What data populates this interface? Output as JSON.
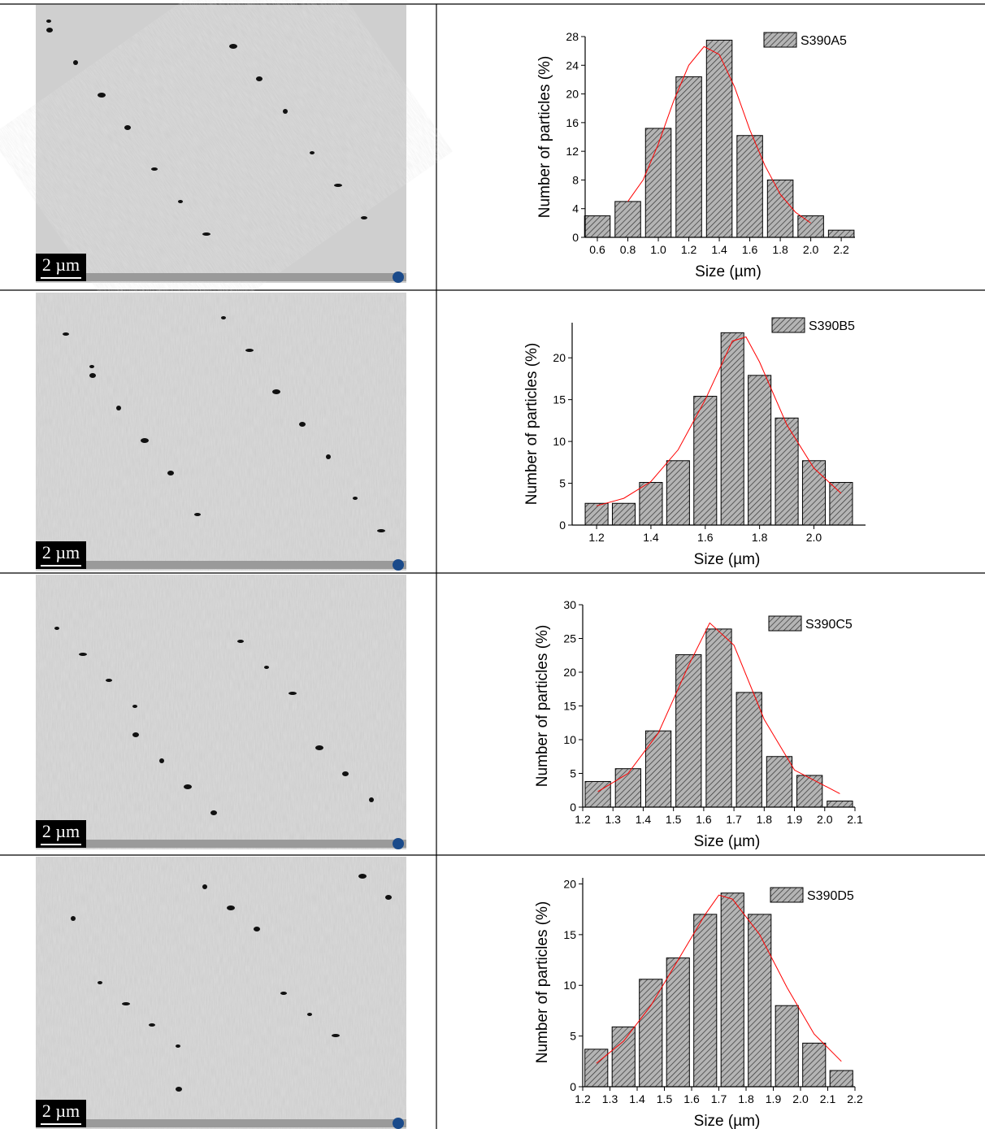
{
  "images": [
    {
      "scale_label": "2 µm"
    },
    {
      "scale_label": "2 µm"
    },
    {
      "scale_label": "2 µm"
    },
    {
      "scale_label": "2 µm"
    }
  ],
  "chart_data": [
    {
      "type": "histogram",
      "series_name": "S390A5",
      "color": "#a0a0a0",
      "x_label": "Size (µm)",
      "y_label": "Number of particles (%)",
      "x": [
        0.6,
        0.8,
        1.0,
        1.2,
        1.4,
        1.6,
        1.8,
        2.0,
        2.2
      ],
      "values": [
        3,
        5,
        15.2,
        22.4,
        27.5,
        14.2,
        8,
        3,
        1
      ],
      "xlim": [
        0.52,
        2.29
      ],
      "ylim": [
        0,
        28
      ],
      "xticks": [
        0.6,
        0.8,
        {
          "value": 1,
          "label": "1.0"
        },
        1.2,
        1.4,
        1.6,
        1.8,
        {
          "value": 2,
          "label": "2.0"
        },
        2.2
      ],
      "yticks": [
        0,
        4,
        8,
        12,
        16,
        20,
        24,
        28
      ],
      "fit": {
        "color": "#ff0000",
        "x": [
          0.8,
          0.9,
          1.0,
          1.1,
          1.2,
          1.3,
          1.4,
          1.5,
          1.6,
          1.7,
          1.8,
          1.9,
          2.0
        ],
        "values": [
          5,
          8,
          13,
          19,
          24,
          26.6,
          25.5,
          21,
          15,
          10,
          6,
          3.5,
          2
        ]
      }
    },
    {
      "type": "histogram",
      "series_name": "S390B5",
      "color": "#a0a0a0",
      "x_label": "Size (µm)",
      "y_label": "Number of particles (%)",
      "x": [
        1.2,
        1.3,
        1.4,
        1.5,
        1.6,
        1.7,
        1.8,
        1.9,
        2.0,
        2.1
      ],
      "values": [
        2.6,
        2.6,
        5.1,
        7.7,
        15.4,
        23,
        17.9,
        12.8,
        7.7,
        5.1
      ],
      "xlim": [
        1.11,
        2.19
      ],
      "ylim": [
        0,
        24.2
      ],
      "xticks": [
        1.2,
        1.4,
        1.6,
        1.8,
        {
          "value": 2,
          "label": "2.0"
        }
      ],
      "yticks": [
        0,
        5,
        10,
        15,
        20
      ],
      "fit": {
        "color": "#ff0000",
        "x": [
          1.2,
          1.3,
          1.4,
          1.5,
          1.6,
          1.7,
          1.75,
          1.8,
          1.9,
          2.0,
          2.1
        ],
        "values": [
          2.3,
          3.2,
          5.2,
          9,
          15,
          22,
          22.5,
          19.5,
          12,
          6.8,
          3.8
        ]
      }
    },
    {
      "type": "histogram",
      "series_name": "S390C5",
      "color": "#a0a0a0",
      "x_label": "Size (µm)",
      "y_label": "Number of particles (%)",
      "x": [
        1.25,
        1.35,
        1.45,
        1.55,
        1.65,
        1.75,
        1.85,
        1.95,
        2.05
      ],
      "values": [
        3.8,
        5.7,
        11.3,
        22.6,
        26.4,
        17,
        7.5,
        4.7,
        0.9
      ],
      "xlim": [
        1.2,
        2.1
      ],
      "ylim": [
        0,
        30
      ],
      "xticks": [
        1.2,
        1.3,
        1.4,
        1.5,
        1.6,
        1.7,
        1.8,
        1.9,
        {
          "value": 2,
          "label": "2.0"
        },
        2.1
      ],
      "yticks": [
        0,
        5,
        10,
        15,
        20,
        25,
        30
      ],
      "fit": {
        "color": "#ff0000",
        "x": [
          1.25,
          1.35,
          1.45,
          1.55,
          1.62,
          1.7,
          1.8,
          1.9,
          2.05
        ],
        "values": [
          2.3,
          5,
          11,
          21,
          27.3,
          24,
          13,
          5.5,
          2
        ]
      }
    },
    {
      "type": "histogram",
      "series_name": "S390D5",
      "color": "#a0a0a0",
      "x_label": "Size (µm)",
      "y_label": "Number of particles (%)",
      "x": [
        1.25,
        1.35,
        1.45,
        1.55,
        1.65,
        1.75,
        1.85,
        1.95,
        2.05,
        2.15
      ],
      "values": [
        3.7,
        5.9,
        10.6,
        12.7,
        17,
        19.1,
        17,
        8,
        4.3,
        1.6
      ],
      "xlim": [
        1.2,
        2.2
      ],
      "ylim": [
        0,
        20.6
      ],
      "xticks": [
        1.2,
        1.3,
        1.4,
        1.5,
        1.6,
        1.7,
        1.8,
        1.9,
        {
          "value": 2,
          "label": "2.0"
        },
        2.1,
        2.2
      ],
      "yticks": [
        0,
        5,
        10,
        15,
        20
      ],
      "fit": {
        "color": "#ff0000",
        "x": [
          1.25,
          1.35,
          1.45,
          1.55,
          1.65,
          1.7,
          1.75,
          1.85,
          1.95,
          2.05,
          2.15
        ],
        "values": [
          2.3,
          4.5,
          8,
          12.5,
          17,
          18.9,
          18.5,
          15,
          9.8,
          5.2,
          2.5
        ]
      }
    }
  ]
}
